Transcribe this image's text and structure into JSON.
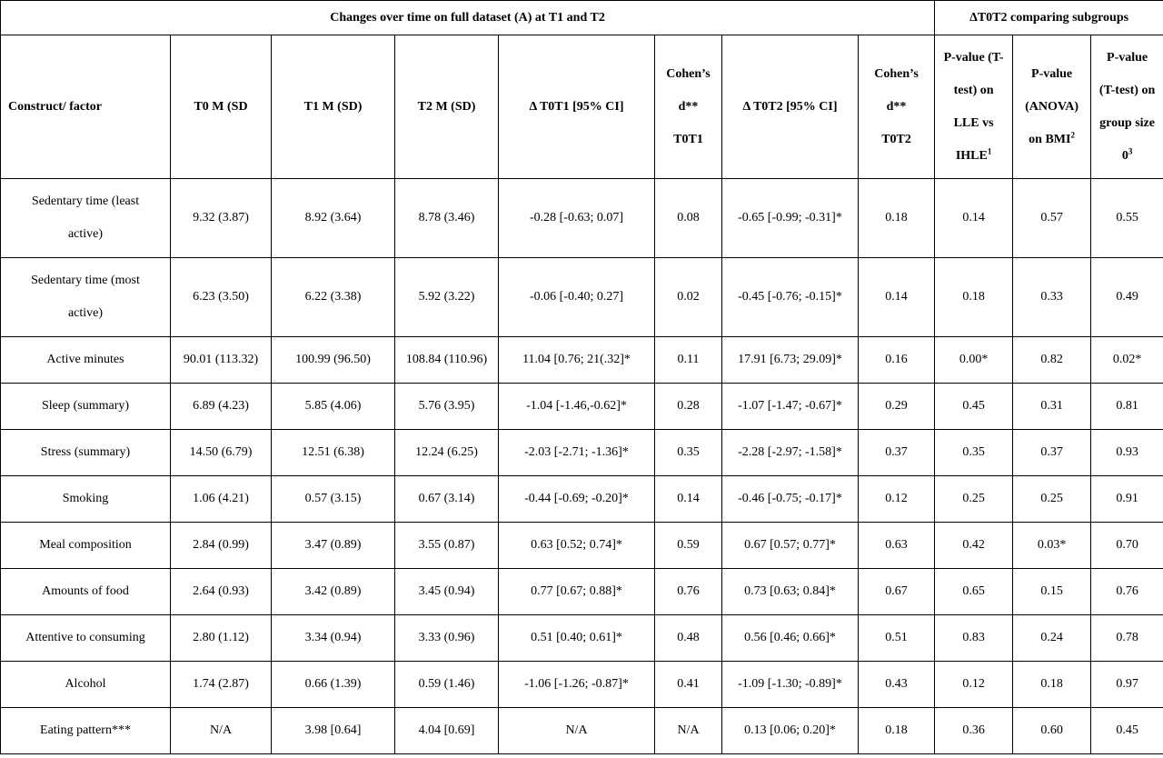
{
  "group_headers": {
    "full_dataset": "Changes over time on full dataset (A) at T1 and T2",
    "subgroups": "ΔT0T2 comparing subgroups"
  },
  "columns": {
    "construct": "Construct/ factor",
    "t0": "T0 M (SD",
    "t1": "T1 M (SD)",
    "t2": "T2 M (SD)",
    "d_t0t1": "Δ T0T1 [95% CI]",
    "cohen_t0t1_line1": "Cohen’s",
    "cohen_t0t1_line2": "d**",
    "cohen_t0t1_line3": "T0T1",
    "d_t0t2": "Δ T0T2 [95% CI]",
    "cohen_t0t2_line1": "Cohen’s",
    "cohen_t0t2_line2": "d**",
    "cohen_t0t2_line3": "T0T2",
    "p_lle_line1": "P-value (T-",
    "p_lle_line2": "test) on",
    "p_lle_line3": "LLE vs",
    "p_lle_line4": "IHLE",
    "p_lle_sup": "1",
    "p_bmi_line1": "P-value",
    "p_bmi_line2": "(ANOVA)",
    "p_bmi_line3": "on BMI",
    "p_bmi_sup": "2",
    "p_group_line1": "P-value",
    "p_group_line2": "(T-test) on",
    "p_group_line3": "group size",
    "p_group_line4": "0",
    "p_group_sup": "3"
  },
  "rows": [
    {
      "construct_line1": "Sedentary time (least",
      "construct_line2": "active)",
      "t0": "9.32 (3.87)",
      "t1": "8.92 (3.64)",
      "t2": "8.78 (3.46)",
      "d_t0t1": "-0.28 [-0.63; 0.07]",
      "cohen_t0t1": "0.08",
      "d_t0t2": "-0.65 [-0.99; -0.31]*",
      "cohen_t0t2": "0.18",
      "p_lle": "0.14",
      "p_bmi": "0.57",
      "p_group": "0.55"
    },
    {
      "construct_line1": "Sedentary time (most",
      "construct_line2": "active)",
      "t0": "6.23 (3.50)",
      "t1": "6.22 (3.38)",
      "t2": "5.92 (3.22)",
      "d_t0t1": "-0.06 [-0.40; 0.27]",
      "cohen_t0t1": "0.02",
      "d_t0t2": "-0.45 [-0.76; -0.15]*",
      "cohen_t0t2": "0.14",
      "p_lle": "0.18",
      "p_bmi": "0.33",
      "p_group": "0.49"
    },
    {
      "construct": "Active minutes",
      "t0": "90.01 (113.32)",
      "t1": "100.99 (96.50)",
      "t2": "108.84 (110.96)",
      "d_t0t1": "11.04 [0.76; 21(.32]*",
      "cohen_t0t1": "0.11",
      "d_t0t2": "17.91 [6.73; 29.09]*",
      "cohen_t0t2": "0.16",
      "p_lle": "0.00*",
      "p_bmi": "0.82",
      "p_group": "0.02*"
    },
    {
      "construct": "Sleep (summary)",
      "t0": "6.89 (4.23)",
      "t1": "5.85 (4.06)",
      "t2": "5.76 (3.95)",
      "d_t0t1": "-1.04 [-1.46,-0.62]*",
      "cohen_t0t1": "0.28",
      "d_t0t2": "-1.07 [-1.47; -0.67]*",
      "cohen_t0t2": "0.29",
      "p_lle": "0.45",
      "p_bmi": "0.31",
      "p_group": "0.81"
    },
    {
      "construct": "Stress (summary)",
      "t0": "14.50 (6.79)",
      "t1": "12.51 (6.38)",
      "t2": "12.24 (6.25)",
      "d_t0t1": "-2.03 [-2.71; -1.36]*",
      "cohen_t0t1": "0.35",
      "d_t0t2": "-2.28 [-2.97; -1.58]*",
      "cohen_t0t2": "0.37",
      "p_lle": "0.35",
      "p_bmi": "0.37",
      "p_group": "0.93"
    },
    {
      "construct": "Smoking",
      "t0": "1.06 (4.21)",
      "t1": "0.57 (3.15)",
      "t2": "0.67 (3.14)",
      "d_t0t1": "-0.44 [-0.69; -0.20]*",
      "cohen_t0t1": "0.14",
      "d_t0t2": "-0.46 [-0.75; -0.17]*",
      "cohen_t0t2": "0.12",
      "p_lle": "0.25",
      "p_bmi": "0.25",
      "p_group": "0.91"
    },
    {
      "construct": "Meal composition",
      "t0": "2.84 (0.99)",
      "t1": "3.47 (0.89)",
      "t2": "3.55 (0.87)",
      "d_t0t1": "0.63 [0.52; 0.74]*",
      "cohen_t0t1": "0.59",
      "d_t0t2": "0.67 [0.57; 0.77]*",
      "cohen_t0t2": "0.63",
      "p_lle": "0.42",
      "p_bmi": "0.03*",
      "p_group": "0.70"
    },
    {
      "construct": "Amounts of food",
      "t0": "2.64 (0.93)",
      "t1": "3.42 (0.89)",
      "t2": "3.45 (0.94)",
      "d_t0t1": "0.77 [0.67; 0.88]*",
      "cohen_t0t1": "0.76",
      "d_t0t2": "0.73 [0.63; 0.84]*",
      "cohen_t0t2": "0.67",
      "p_lle": "0.65",
      "p_bmi": "0.15",
      "p_group": "0.76"
    },
    {
      "construct": "Attentive to consuming",
      "t0": "2.80 (1.12)",
      "t1": "3.34 (0.94)",
      "t2": "3.33 (0.96)",
      "d_t0t1": "0.51 [0.40; 0.61]*",
      "cohen_t0t1": "0.48",
      "d_t0t2": "0.56 [0.46; 0.66]*",
      "cohen_t0t2": "0.51",
      "p_lle": "0.83",
      "p_bmi": "0.24",
      "p_group": "0.78"
    },
    {
      "construct": "Alcohol",
      "t0": "1.74 (2.87)",
      "t1": "0.66 (1.39)",
      "t2": "0.59 (1.46)",
      "d_t0t1": "-1.06 [-1.26; -0.87]*",
      "cohen_t0t1": "0.41",
      "d_t0t2": "-1.09 [-1.30; -0.89]*",
      "cohen_t0t2": "0.43",
      "p_lle": "0.12",
      "p_bmi": "0.18",
      "p_group": "0.97"
    },
    {
      "construct": "Eating pattern***",
      "t0": "N/A",
      "t1": "3.98 [0.64]",
      "t2": "4.04 [0.69]",
      "d_t0t1": "N/A",
      "cohen_t0t1": "N/A",
      "d_t0t2": "0.13 [0.06; 0.20]*",
      "cohen_t0t2": "0.18",
      "p_lle": "0.36",
      "p_bmi": "0.60",
      "p_group": "0.45"
    }
  ]
}
